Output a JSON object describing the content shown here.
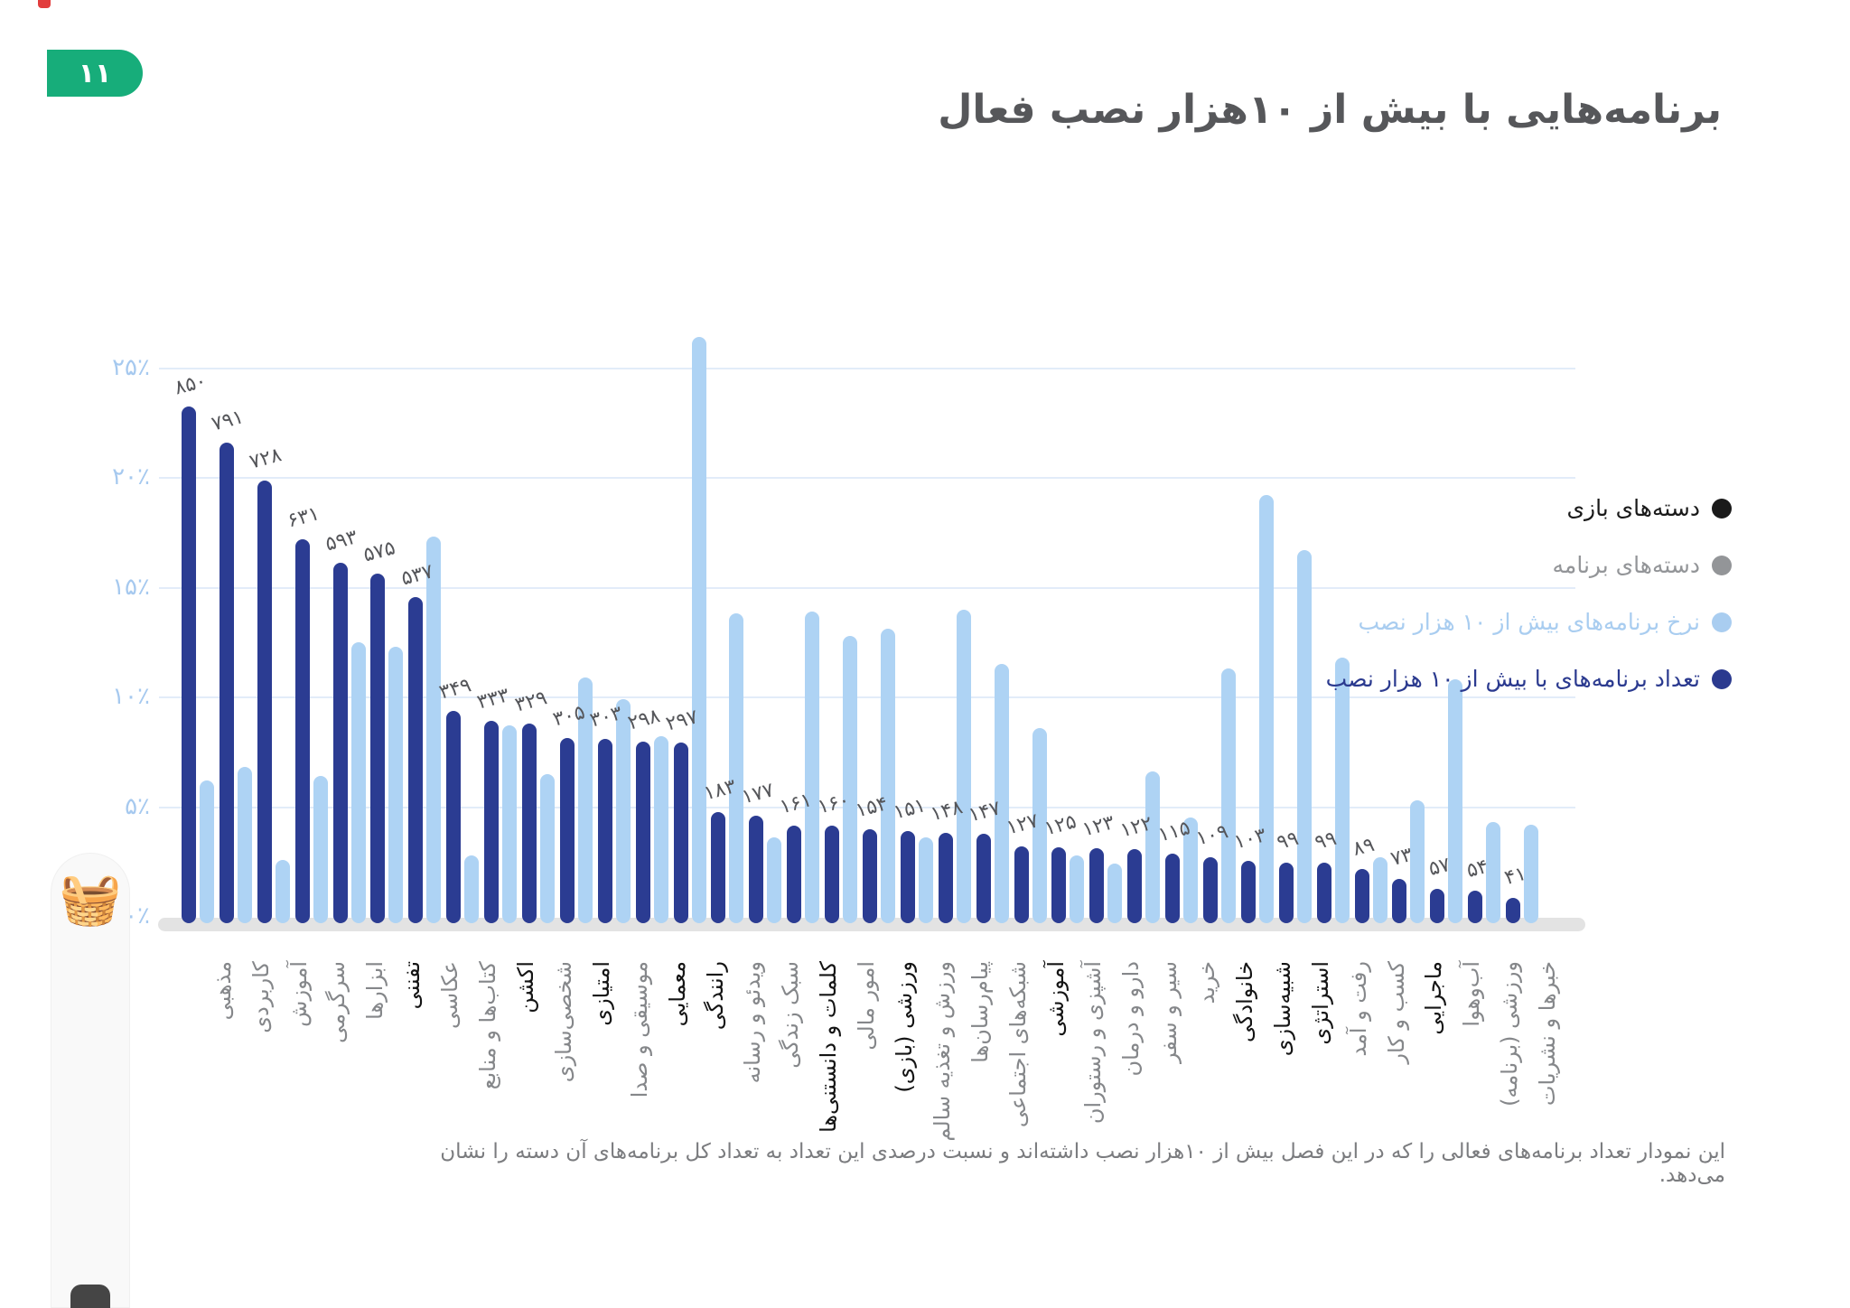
{
  "page": {
    "badge": "۱۱",
    "title": "برنامه‌هایی با بیش از ۱۰هزار نصب فعال",
    "footnote": "این نمودار تعداد برنامه‌های فعالی را که در این فصل بیش از ۱۰هزار نصب داشته‌اند و نسبت درصدی این تعداد به تعداد کل برنامه‌های آن دسته را نشان می‌دهد.",
    "basket_emoji": "🧺"
  },
  "colors": {
    "badge_green": "#17ad7a",
    "count_bar": "#2b3c92",
    "rate_bar": "#aed3f4",
    "grid": "#e2ecf9",
    "tick_text": "#a6c9ef",
    "title_text": "#56575a",
    "app_label": "#85878a",
    "game_label": "#141414"
  },
  "legend": {
    "items": [
      {
        "name": "game-categories",
        "label": "دسته‌های بازی",
        "color": "#1a1a1a"
      },
      {
        "name": "app-categories",
        "label": "دسته‌های برنامه",
        "color": "#939598"
      },
      {
        "name": "rate-series",
        "label": "نرخ برنامه‌های بیش از ۱۰ هزار نصب",
        "color": "#a9cdf0"
      },
      {
        "name": "count-series",
        "label": "تعداد برنامه‌های با بیش از ۱۰ هزار نصب",
        "color": "#2b3a8f"
      }
    ]
  },
  "chart_data": {
    "type": "bar",
    "title": "برنامه‌هایی با بیش از ۱۰هزار نصب فعال",
    "xlabel": "",
    "ylabel": "",
    "grid": true,
    "legend_position": "right",
    "y_axis": {
      "unit": "percent",
      "ylim": [
        0,
        27
      ],
      "ticks": [
        {
          "label": "۲۵٪",
          "pct": 25,
          "line": true
        },
        {
          "label": "۲۰٪",
          "pct": 20,
          "line": true
        },
        {
          "label": "۱۵٪",
          "pct": 15,
          "line": true
        },
        {
          "label": "۱۰٪",
          "pct": 10,
          "line": true
        },
        {
          "label": "۵٪",
          "pct": 5,
          "line": true
        },
        {
          "label": "۰٪",
          "pct": 0,
          "line": false
        }
      ]
    },
    "series": [
      {
        "name": "تعداد برنامه‌های با بیش از ۱۰ هزار نصب",
        "color": "#2b3c92",
        "field": "count",
        "note": "hidden count axis, 850 ≈ 23.5% of drawn scale"
      },
      {
        "name": "نرخ برنامه‌های بیش از ۱۰ هزار نصب",
        "color": "#aed3f4",
        "field": "rate_pct"
      }
    ],
    "categories": [
      {
        "label": "مذهبی",
        "type": "app",
        "count": 850,
        "count_label": "۸۵۰",
        "rate_pct": 6.5
      },
      {
        "label": "کاربردی",
        "type": "app",
        "count": 791,
        "count_label": "۷۹۱",
        "rate_pct": 7.1
      },
      {
        "label": "آموزش",
        "type": "app",
        "count": 728,
        "count_label": "۷۲۸",
        "rate_pct": 2.9
      },
      {
        "label": "سرگرمی",
        "type": "app",
        "count": 631,
        "count_label": "۶۳۱",
        "rate_pct": 6.7
      },
      {
        "label": "ابزارها",
        "type": "app",
        "count": 593,
        "count_label": "۵۹۳",
        "rate_pct": 12.8
      },
      {
        "label": "تفننی",
        "type": "game",
        "count": 575,
        "count_label": "۵۷۵",
        "rate_pct": 12.6
      },
      {
        "label": "عکاسی",
        "type": "app",
        "count": 537,
        "count_label": "۵۳۷",
        "rate_pct": 17.6
      },
      {
        "label": "کتاب‌ها و منابع",
        "type": "app",
        "count": 349,
        "count_label": "۳۴۹",
        "rate_pct": 3.1
      },
      {
        "label": "اکشن",
        "type": "game",
        "count": 333,
        "count_label": "۳۳۳",
        "rate_pct": 9.0
      },
      {
        "label": "شخصی‌سازی",
        "type": "app",
        "count": 329,
        "count_label": "۳۲۹",
        "rate_pct": 6.8
      },
      {
        "label": "امتیازی",
        "type": "game",
        "count": 305,
        "count_label": "۳۰۵",
        "rate_pct": 11.2
      },
      {
        "label": "موسیقی و صدا",
        "type": "app",
        "count": 303,
        "count_label": "۳۰۳",
        "rate_pct": 10.2
      },
      {
        "label": "معمایی",
        "type": "game",
        "count": 298,
        "count_label": "۲۹۸",
        "rate_pct": 8.5
      },
      {
        "label": "رانندگی",
        "type": "game",
        "count": 297,
        "count_label": "۲۹۷",
        "rate_pct": 26.7
      },
      {
        "label": "ویدئو و رسانه",
        "type": "app",
        "count": 183,
        "count_label": "۱۸۳",
        "rate_pct": 14.1
      },
      {
        "label": "سبک زندگی",
        "type": "app",
        "count": 177,
        "count_label": "۱۷۷",
        "rate_pct": 3.9
      },
      {
        "label": "کلمات و دانستنی‌ها",
        "type": "game",
        "count": 161,
        "count_label": "۱۶۱",
        "rate_pct": 14.2
      },
      {
        "label": "امور مالی",
        "type": "app",
        "count": 160,
        "count_label": "۱۶۰",
        "rate_pct": 13.1
      },
      {
        "label": "ورزشی (بازی)",
        "type": "game",
        "count": 154,
        "count_label": "۱۵۴",
        "rate_pct": 13.4
      },
      {
        "label": "ورزش و تغذیه سالم",
        "type": "app",
        "count": 151,
        "count_label": "۱۵۱",
        "rate_pct": 3.9
      },
      {
        "label": "پیام‌رسان‌ها",
        "type": "app",
        "count": 148,
        "count_label": "۱۴۸",
        "rate_pct": 14.3
      },
      {
        "label": "شبکه‌های اجتماعی",
        "type": "app",
        "count": 147,
        "count_label": "۱۴۷",
        "rate_pct": 11.8
      },
      {
        "label": "آموزشی",
        "type": "game",
        "count": 127,
        "count_label": "۱۲۷",
        "rate_pct": 8.9
      },
      {
        "label": "آشپزی و رستوران",
        "type": "app",
        "count": 125,
        "count_label": "۱۲۵",
        "rate_pct": 3.1
      },
      {
        "label": "دارو و درمان",
        "type": "app",
        "count": 123,
        "count_label": "۱۲۳",
        "rate_pct": 2.7
      },
      {
        "label": "سیر و سفر",
        "type": "app",
        "count": 122,
        "count_label": "۱۲۲",
        "rate_pct": 6.9
      },
      {
        "label": "خرید",
        "type": "app",
        "count": 115,
        "count_label": "۱۱۵",
        "rate_pct": 4.8
      },
      {
        "label": "خانوادگی",
        "type": "game",
        "count": 109,
        "count_label": "۱۰۹",
        "rate_pct": 11.6
      },
      {
        "label": "شبیه‌سازی",
        "type": "game",
        "count": 103,
        "count_label": "۱۰۳",
        "rate_pct": 19.5
      },
      {
        "label": "استراتژی",
        "type": "game",
        "count": 99,
        "count_label": "۹۹",
        "rate_pct": 17.0
      },
      {
        "label": "رفت و آمد",
        "type": "app",
        "count": 99,
        "count_label": "۹۹",
        "rate_pct": 12.1
      },
      {
        "label": "کسب و کار",
        "type": "app",
        "count": 89,
        "count_label": "۸۹",
        "rate_pct": 3.0
      },
      {
        "label": "ماجرایی",
        "type": "game",
        "count": 73,
        "count_label": "۷۳",
        "rate_pct": 5.6
      },
      {
        "label": "آب‌وهوا",
        "type": "app",
        "count": 57,
        "count_label": "۵۷",
        "rate_pct": 11.1
      },
      {
        "label": "ورزشی (برنامه)",
        "type": "app",
        "count": 54,
        "count_label": "۵۴",
        "rate_pct": 4.6
      },
      {
        "label": "خبرها و نشریات",
        "type": "app",
        "count": 41,
        "count_label": "۴۱",
        "rate_pct": 4.5
      }
    ]
  }
}
